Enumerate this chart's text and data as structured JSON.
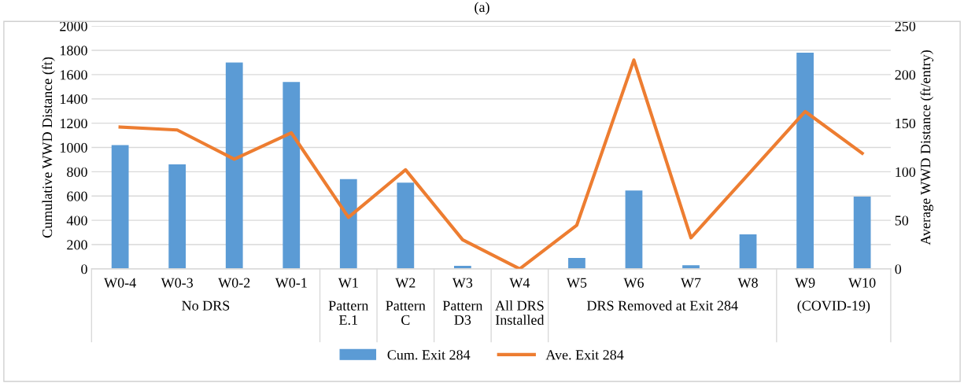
{
  "chart_data": {
    "type": "bar",
    "title": "(a)",
    "categories": [
      "W0-4",
      "W0-3",
      "W0-2",
      "W0-1",
      "W1",
      "W2",
      "W3",
      "W4",
      "W5",
      "W6",
      "W7",
      "W8",
      "W9",
      "W10"
    ],
    "series": [
      {
        "name": "Cum. Exit 284",
        "color": "#5b9bd5",
        "values": [
          1020,
          860,
          1700,
          1540,
          740,
          710,
          25,
          0,
          90,
          645,
          30,
          285,
          1780,
          595
        ]
      },
      {
        "name": "Ave. Exit 284",
        "type": "line",
        "axis": "y2",
        "color": "#ed7d31",
        "values": [
          146,
          143,
          113,
          140,
          53,
          102,
          30,
          0,
          45,
          215,
          32,
          97,
          162,
          119
        ]
      }
    ],
    "ylabel": "Cumulative WWD Distance (ft)",
    "y2label": "Average WWD Distance (ft/entry)",
    "ylim": [
      0,
      2000
    ],
    "yticks": [
      0,
      200,
      400,
      600,
      800,
      1000,
      1200,
      1400,
      1600,
      1800,
      2000
    ],
    "y2lim": [
      0,
      250
    ],
    "y2ticks": [
      0,
      50,
      100,
      150,
      200,
      250
    ],
    "annotations": [
      "No DRS",
      "Pattern\nE.1",
      "Pattern\nC",
      "Pattern\nD3",
      "All DRS\nInstalled",
      "DRS Removed at Exit 284",
      "(COVID-19)"
    ],
    "grid": "y",
    "legend": "bottom",
    "marker": "none",
    "line_style": "solid"
  }
}
